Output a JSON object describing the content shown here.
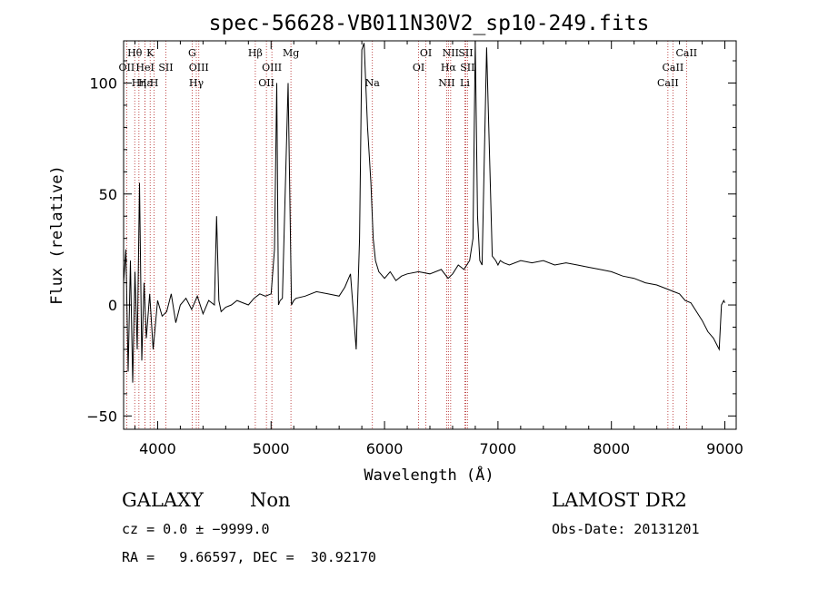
{
  "chart_data": {
    "type": "line",
    "title": "spec-56628-VB011N30V2_sp10-249.fits",
    "xlabel": "Wavelength (Å)",
    "ylabel": "Flux (relative)",
    "xlim": [
      3700,
      9100
    ],
    "ylim": [
      -56,
      119
    ],
    "xticks": [
      "4000",
      "5000",
      "6000",
      "7000",
      "8000",
      "9000"
    ],
    "yticks": [
      "−50",
      "0",
      "50",
      "100"
    ],
    "grid": false,
    "series": [
      {
        "color": "#000000",
        "x": [
          3700,
          3720,
          3740,
          3760,
          3780,
          3800,
          3820,
          3840,
          3860,
          3880,
          3900,
          3930,
          3960,
          4000,
          4040,
          4080,
          4120,
          4160,
          4200,
          4250,
          4300,
          4350,
          4400,
          4450,
          4500,
          4520,
          4540,
          4560,
          4600,
          4650,
          4700,
          4750,
          4800,
          4850,
          4900,
          4950,
          5000,
          5030,
          5050,
          5065,
          5080,
          5100,
          5150,
          5180,
          5200,
          5220,
          5300,
          5400,
          5500,
          5600,
          5650,
          5700,
          5750,
          5780,
          5800,
          5820,
          5850,
          5880,
          5900,
          5920,
          5950,
          6000,
          6050,
          6100,
          6150,
          6200,
          6300,
          6400,
          6500,
          6560,
          6600,
          6650,
          6700,
          6750,
          6780,
          6800,
          6820,
          6840,
          6860,
          6900,
          6950,
          6980,
          7000,
          7020,
          7050,
          7100,
          7200,
          7300,
          7400,
          7500,
          7600,
          7700,
          7800,
          7900,
          8000,
          8100,
          8200,
          8300,
          8400,
          8500,
          8550,
          8600,
          8650,
          8700,
          8750,
          8800,
          8850,
          8900,
          8950,
          8970,
          8990,
          9000
        ],
        "y": [
          10,
          25,
          -30,
          20,
          -35,
          15,
          -20,
          55,
          -25,
          10,
          -15,
          5,
          -20,
          2,
          -5,
          -3,
          5,
          -8,
          0,
          3,
          -2,
          4,
          -4,
          2,
          0,
          40,
          2,
          -3,
          -1,
          0,
          2,
          1,
          0,
          3,
          5,
          4,
          5,
          25,
          100,
          0,
          2,
          3,
          100,
          0,
          2,
          3,
          4,
          6,
          5,
          4,
          8,
          14,
          -20,
          30,
          115,
          118,
          80,
          55,
          30,
          20,
          15,
          12,
          15,
          11,
          13,
          14,
          15,
          14,
          16,
          12,
          14,
          18,
          16,
          20,
          30,
          120,
          40,
          20,
          18,
          116,
          22,
          20,
          18,
          20,
          19,
          18,
          20,
          19,
          20,
          18,
          19,
          18,
          17,
          16,
          15,
          13,
          12,
          10,
          9,
          7,
          6,
          5,
          2,
          1,
          -3,
          -7,
          -12,
          -15,
          -20,
          0,
          2,
          1
        ]
      }
    ],
    "spectral_lines": [
      {
        "label": "Hθ",
        "x": 3798,
        "row": 1
      },
      {
        "label": "OII",
        "x": 3727,
        "row": 2
      },
      {
        "label": "Hη",
        "x": 3835,
        "row": 3
      },
      {
        "label": "Hε",
        "x": 3889,
        "row": 3
      },
      {
        "label": "K",
        "x": 3934,
        "row": 1
      },
      {
        "label": "HeI",
        "x": 3889,
        "row": 2
      },
      {
        "label": "SII",
        "x": 4072,
        "row": 2
      },
      {
        "label": "H",
        "x": 3969,
        "row": 3
      },
      {
        "label": "G",
        "x": 4304,
        "row": 1
      },
      {
        "label": "OIII",
        "x": 4363,
        "row": 2
      },
      {
        "label": "Hγ",
        "x": 4341,
        "row": 3
      },
      {
        "label": "Hβ",
        "x": 4861,
        "row": 1
      },
      {
        "label": "OIII",
        "x": 5007,
        "row": 2
      },
      {
        "label": "OII",
        "x": 4959,
        "row": 3
      },
      {
        "label": "Mg",
        "x": 5175,
        "row": 1
      },
      {
        "label": "Na",
        "x": 5893,
        "row": 3
      },
      {
        "label": "OI",
        "x": 6364,
        "row": 1
      },
      {
        "label": "OI",
        "x": 6300,
        "row": 2
      },
      {
        "label": "NII",
        "x": 6583,
        "row": 1
      },
      {
        "label": "SII",
        "x": 6716,
        "row": 1
      },
      {
        "label": "Hα",
        "x": 6563,
        "row": 2
      },
      {
        "label": "SII",
        "x": 6731,
        "row": 2
      },
      {
        "label": "NII",
        "x": 6548,
        "row": 3
      },
      {
        "label": "Li",
        "x": 6708,
        "row": 3
      },
      {
        "label": "CaII",
        "x": 8662,
        "row": 1
      },
      {
        "label": "CaII",
        "x": 8542,
        "row": 2
      },
      {
        "label": "CaII",
        "x": 8498,
        "row": 3
      }
    ]
  },
  "info": {
    "object_class": "GALAXY",
    "subclass": "Non",
    "survey": "LAMOST DR2",
    "redshift": "cz = 0.0 ± −9999.0",
    "obs_date": "Obs-Date: 20131201",
    "coords": "RA =   9.66597, DEC =  30.92170"
  }
}
